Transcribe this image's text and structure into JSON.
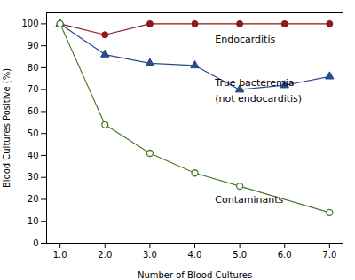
{
  "chart_data": {
    "type": "line",
    "x": [
      1,
      2,
      3,
      4,
      5,
      6,
      7
    ],
    "series": [
      {
        "color": "#8B1A1A",
        "marker": "circle",
        "values": [
          100,
          95,
          100,
          100,
          100,
          100,
          100
        ]
      },
      {
        "color": "#2B4A8A",
        "marker": "triangle",
        "values": [
          100,
          86,
          82,
          81,
          70,
          72,
          76
        ]
      },
      {
        "color": "#4A7A2A",
        "marker": "circle-open",
        "x": [
          1,
          2,
          3,
          4,
          5,
          7
        ],
        "values": [
          100,
          54,
          41,
          32,
          26,
          14
        ]
      }
    ],
    "annotations": [
      {
        "text": "Endocarditis",
        "x": 4.45,
        "y": 93
      },
      {
        "text": "True bacteremia",
        "x": 4.45,
        "y": 73
      },
      {
        "text": "(not endocarditis)",
        "x": 4.45,
        "y": 66
      },
      {
        "text": "Contaminants",
        "x": 4.45,
        "y": 20
      }
    ],
    "xlabel": "Number of Blood Cultures",
    "ylabel": "Blood Cultures Positive (%)",
    "xlim": [
      0.7,
      7.3
    ],
    "ylim": [
      0,
      105
    ],
    "xticks": [
      1,
      2,
      3,
      4,
      5,
      6,
      7
    ],
    "yticks": [
      0,
      10,
      20,
      30,
      40,
      50,
      60,
      70,
      80,
      90,
      100
    ],
    "grid": false
  }
}
